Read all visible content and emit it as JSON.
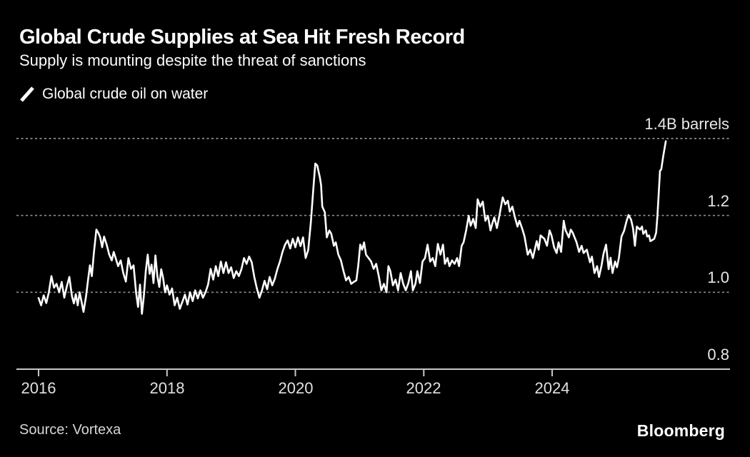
{
  "header": {
    "title": "Global Crude Supplies at Sea Hit Fresh Record",
    "subtitle": "Supply is mounting despite the threat of sanctions"
  },
  "footer": {
    "source": "Source: Vortexa",
    "brand": "Bloomberg"
  },
  "colors": {
    "background": "#000000",
    "line": "#ffffff",
    "grid": "#8f8f8f",
    "axis": "#c8c8c8",
    "title_text": "#ffffff",
    "axis_label_text": "#e8e8e8",
    "source_text": "#d6d6d6"
  },
  "chart_data": {
    "type": "line",
    "title": "Global Crude Supplies at Sea Hit Fresh Record",
    "subtitle": "Supply is mounting despite the threat of sanctions",
    "series_name": "Global crude oil on water",
    "unit": "billion barrels",
    "legend_position": "top-left",
    "grid": "dotted-horizontal",
    "x_axis": {
      "ticks": [
        2016,
        2018,
        2020,
        2022,
        2024
      ],
      "range": [
        2016,
        2026.8
      ]
    },
    "y_axis": {
      "range": [
        0.8,
        1.4
      ],
      "gridlines": [
        1.0,
        1.2,
        1.4
      ],
      "baseline": 0.8,
      "labels": [
        {
          "value": 1.4,
          "label": "1.4B barrels"
        },
        {
          "value": 1.2,
          "label": "1.2"
        },
        {
          "value": 1.0,
          "label": "1.0"
        },
        {
          "value": 0.8,
          "label": "0.8"
        }
      ]
    },
    "points": [
      [
        2016.0,
        0.985
      ],
      [
        2016.04,
        0.966
      ],
      [
        2016.08,
        0.992
      ],
      [
        2016.12,
        0.972
      ],
      [
        2016.16,
        1.0
      ],
      [
        2016.2,
        1.042
      ],
      [
        2016.24,
        1.012
      ],
      [
        2016.28,
        1.022
      ],
      [
        2016.32,
        1.0
      ],
      [
        2016.36,
        1.027
      ],
      [
        2016.4,
        0.986
      ],
      [
        2016.44,
        1.015
      ],
      [
        2016.48,
        1.04
      ],
      [
        2016.52,
        0.99
      ],
      [
        2016.55,
        0.971
      ],
      [
        2016.58,
        0.995
      ],
      [
        2016.61,
        0.966
      ],
      [
        2016.64,
        1.0
      ],
      [
        2016.67,
        0.975
      ],
      [
        2016.7,
        0.949
      ],
      [
        2016.74,
        0.99
      ],
      [
        2016.77,
        1.031
      ],
      [
        2016.8,
        1.07
      ],
      [
        2016.83,
        1.042
      ],
      [
        2016.86,
        1.1
      ],
      [
        2016.9,
        1.163
      ],
      [
        2016.93,
        1.155
      ],
      [
        2016.96,
        1.143
      ],
      [
        2016.99,
        1.117
      ],
      [
        2017.02,
        1.145
      ],
      [
        2017.06,
        1.124
      ],
      [
        2017.1,
        1.098
      ],
      [
        2017.14,
        1.083
      ],
      [
        2017.17,
        1.105
      ],
      [
        2017.2,
        1.089
      ],
      [
        2017.24,
        1.068
      ],
      [
        2017.28,
        1.083
      ],
      [
        2017.32,
        1.05
      ],
      [
        2017.36,
        1.028
      ],
      [
        2017.4,
        1.089
      ],
      [
        2017.44,
        1.061
      ],
      [
        2017.48,
        1.07
      ],
      [
        2017.52,
        0.998
      ],
      [
        2017.55,
        0.962
      ],
      [
        2017.58,
        1.02
      ],
      [
        2017.61,
        0.944
      ],
      [
        2017.64,
        0.99
      ],
      [
        2017.67,
        1.055
      ],
      [
        2017.7,
        1.098
      ],
      [
        2017.73,
        1.048
      ],
      [
        2017.76,
        1.072
      ],
      [
        2017.79,
        1.024
      ],
      [
        2017.82,
        1.096
      ],
      [
        2017.85,
        1.042
      ],
      [
        2017.88,
        1.014
      ],
      [
        2017.91,
        1.06
      ],
      [
        2017.94,
        1.037
      ],
      [
        2017.97,
        1.0
      ],
      [
        2018.0,
        1.018
      ],
      [
        2018.04,
        0.994
      ],
      [
        2018.08,
        1.01
      ],
      [
        2018.12,
        0.966
      ],
      [
        2018.16,
        0.986
      ],
      [
        2018.2,
        0.957
      ],
      [
        2018.24,
        0.975
      ],
      [
        2018.28,
        0.994
      ],
      [
        2018.32,
        0.968
      ],
      [
        2018.36,
        1.0
      ],
      [
        2018.4,
        0.977
      ],
      [
        2018.44,
        1.005
      ],
      [
        2018.48,
        0.984
      ],
      [
        2018.52,
        1.005
      ],
      [
        2018.56,
        0.986
      ],
      [
        2018.6,
        1.0
      ],
      [
        2018.64,
        1.02
      ],
      [
        2018.68,
        1.061
      ],
      [
        2018.72,
        1.033
      ],
      [
        2018.76,
        1.068
      ],
      [
        2018.8,
        1.042
      ],
      [
        2018.84,
        1.08
      ],
      [
        2018.88,
        1.05
      ],
      [
        2018.92,
        1.078
      ],
      [
        2018.96,
        1.05
      ],
      [
        2019.0,
        1.065
      ],
      [
        2019.04,
        1.037
      ],
      [
        2019.08,
        1.055
      ],
      [
        2019.12,
        1.042
      ],
      [
        2019.16,
        1.06
      ],
      [
        2019.2,
        1.089
      ],
      [
        2019.24,
        1.074
      ],
      [
        2019.28,
        1.093
      ],
      [
        2019.32,
        1.078
      ],
      [
        2019.36,
        1.04
      ],
      [
        2019.4,
        1.01
      ],
      [
        2019.44,
        0.986
      ],
      [
        2019.48,
        1.005
      ],
      [
        2019.52,
        1.03
      ],
      [
        2019.56,
        1.008
      ],
      [
        2019.6,
        1.04
      ],
      [
        2019.64,
        1.018
      ],
      [
        2019.68,
        1.035
      ],
      [
        2019.72,
        1.06
      ],
      [
        2019.76,
        1.08
      ],
      [
        2019.8,
        1.105
      ],
      [
        2019.84,
        1.124
      ],
      [
        2019.88,
        1.135
      ],
      [
        2019.92,
        1.114
      ],
      [
        2019.96,
        1.139
      ],
      [
        2020.0,
        1.117
      ],
      [
        2020.04,
        1.143
      ],
      [
        2020.08,
        1.12
      ],
      [
        2020.12,
        1.143
      ],
      [
        2020.16,
        1.089
      ],
      [
        2020.2,
        1.11
      ],
      [
        2020.24,
        1.18
      ],
      [
        2020.28,
        1.27
      ],
      [
        2020.31,
        1.335
      ],
      [
        2020.34,
        1.33
      ],
      [
        2020.38,
        1.3
      ],
      [
        2020.4,
        1.279
      ],
      [
        2020.42,
        1.223
      ],
      [
        2020.46,
        1.208
      ],
      [
        2020.49,
        1.143
      ],
      [
        2020.53,
        1.161
      ],
      [
        2020.56,
        1.152
      ],
      [
        2020.6,
        1.121
      ],
      [
        2020.63,
        1.13
      ],
      [
        2020.67,
        1.098
      ],
      [
        2020.71,
        1.083
      ],
      [
        2020.75,
        1.055
      ],
      [
        2020.79,
        1.031
      ],
      [
        2020.83,
        1.04
      ],
      [
        2020.87,
        1.022
      ],
      [
        2020.91,
        1.027
      ],
      [
        2020.95,
        1.031
      ],
      [
        2020.98,
        1.07
      ],
      [
        2021.01,
        1.124
      ],
      [
        2021.04,
        1.111
      ],
      [
        2021.07,
        1.13
      ],
      [
        2021.1,
        1.098
      ],
      [
        2021.14,
        1.089
      ],
      [
        2021.18,
        1.08
      ],
      [
        2021.22,
        1.061
      ],
      [
        2021.26,
        1.074
      ],
      [
        2021.3,
        1.042
      ],
      [
        2021.34,
        1.005
      ],
      [
        2021.38,
        1.022
      ],
      [
        2021.42,
        1.0
      ],
      [
        2021.45,
        1.068
      ],
      [
        2021.48,
        1.055
      ],
      [
        2021.52,
        1.018
      ],
      [
        2021.56,
        1.033
      ],
      [
        2021.6,
        1.005
      ],
      [
        2021.64,
        1.05
      ],
      [
        2021.68,
        1.022
      ],
      [
        2021.72,
        1.005
      ],
      [
        2021.76,
        1.024
      ],
      [
        2021.8,
        1.055
      ],
      [
        2021.83,
        1.005
      ],
      [
        2021.87,
        1.022
      ],
      [
        2021.9,
        1.055
      ],
      [
        2021.94,
        1.024
      ],
      [
        2021.98,
        1.08
      ],
      [
        2022.02,
        1.089
      ],
      [
        2022.06,
        1.124
      ],
      [
        2022.1,
        1.08
      ],
      [
        2022.14,
        1.089
      ],
      [
        2022.18,
        1.068
      ],
      [
        2022.22,
        1.126
      ],
      [
        2022.26,
        1.098
      ],
      [
        2022.3,
        1.124
      ],
      [
        2022.33,
        1.074
      ],
      [
        2022.37,
        1.089
      ],
      [
        2022.4,
        1.068
      ],
      [
        2022.44,
        1.083
      ],
      [
        2022.48,
        1.074
      ],
      [
        2022.52,
        1.089
      ],
      [
        2022.55,
        1.068
      ],
      [
        2022.59,
        1.121
      ],
      [
        2022.62,
        1.13
      ],
      [
        2022.66,
        1.161
      ],
      [
        2022.7,
        1.199
      ],
      [
        2022.73,
        1.173
      ],
      [
        2022.77,
        1.191
      ],
      [
        2022.81,
        1.167
      ],
      [
        2022.84,
        1.242
      ],
      [
        2022.88,
        1.223
      ],
      [
        2022.92,
        1.236
      ],
      [
        2022.96,
        1.186
      ],
      [
        2023.0,
        1.199
      ],
      [
        2023.04,
        1.161
      ],
      [
        2023.07,
        1.18
      ],
      [
        2023.1,
        1.195
      ],
      [
        2023.14,
        1.167
      ],
      [
        2023.18,
        1.201
      ],
      [
        2023.23,
        1.247
      ],
      [
        2023.27,
        1.229
      ],
      [
        2023.31,
        1.238
      ],
      [
        2023.34,
        1.21
      ],
      [
        2023.38,
        1.223
      ],
      [
        2023.42,
        1.195
      ],
      [
        2023.46,
        1.171
      ],
      [
        2023.49,
        1.186
      ],
      [
        2023.53,
        1.167
      ],
      [
        2023.57,
        1.145
      ],
      [
        2023.62,
        1.098
      ],
      [
        2023.66,
        1.111
      ],
      [
        2023.7,
        1.089
      ],
      [
        2023.76,
        1.133
      ],
      [
        2023.79,
        1.111
      ],
      [
        2023.82,
        1.148
      ],
      [
        2023.88,
        1.139
      ],
      [
        2023.92,
        1.121
      ],
      [
        2023.96,
        1.161
      ],
      [
        2023.99,
        1.148
      ],
      [
        2024.03,
        1.117
      ],
      [
        2024.07,
        1.102
      ],
      [
        2024.1,
        1.13
      ],
      [
        2024.14,
        1.105
      ],
      [
        2024.18,
        1.186
      ],
      [
        2024.21,
        1.161
      ],
      [
        2024.26,
        1.143
      ],
      [
        2024.29,
        1.163
      ],
      [
        2024.32,
        1.155
      ],
      [
        2024.38,
        1.13
      ],
      [
        2024.42,
        1.105
      ],
      [
        2024.46,
        1.121
      ],
      [
        2024.49,
        1.102
      ],
      [
        2024.54,
        1.111
      ],
      [
        2024.59,
        1.078
      ],
      [
        2024.62,
        1.093
      ],
      [
        2024.66,
        1.05
      ],
      [
        2024.7,
        1.068
      ],
      [
        2024.73,
        1.04
      ],
      [
        2024.77,
        1.07
      ],
      [
        2024.8,
        1.1
      ],
      [
        2024.84,
        1.124
      ],
      [
        2024.88,
        1.06
      ],
      [
        2024.91,
        1.09
      ],
      [
        2024.94,
        1.05
      ],
      [
        2024.98,
        1.08
      ],
      [
        2025.01,
        1.065
      ],
      [
        2025.04,
        1.09
      ],
      [
        2025.08,
        1.145
      ],
      [
        2025.12,
        1.16
      ],
      [
        2025.16,
        1.186
      ],
      [
        2025.19,
        1.201
      ],
      [
        2025.23,
        1.189
      ],
      [
        2025.26,
        1.167
      ],
      [
        2025.29,
        1.121
      ],
      [
        2025.32,
        1.171
      ],
      [
        2025.37,
        1.163
      ],
      [
        2025.4,
        1.171
      ],
      [
        2025.42,
        1.152
      ],
      [
        2025.46,
        1.161
      ],
      [
        2025.48,
        1.145
      ],
      [
        2025.51,
        1.148
      ],
      [
        2025.53,
        1.133
      ],
      [
        2025.59,
        1.139
      ],
      [
        2025.62,
        1.155
      ],
      [
        2025.64,
        1.199
      ],
      [
        2025.66,
        1.257
      ],
      [
        2025.68,
        1.316
      ],
      [
        2025.7,
        1.32
      ],
      [
        2025.73,
        1.354
      ],
      [
        2025.77,
        1.393
      ]
    ]
  }
}
